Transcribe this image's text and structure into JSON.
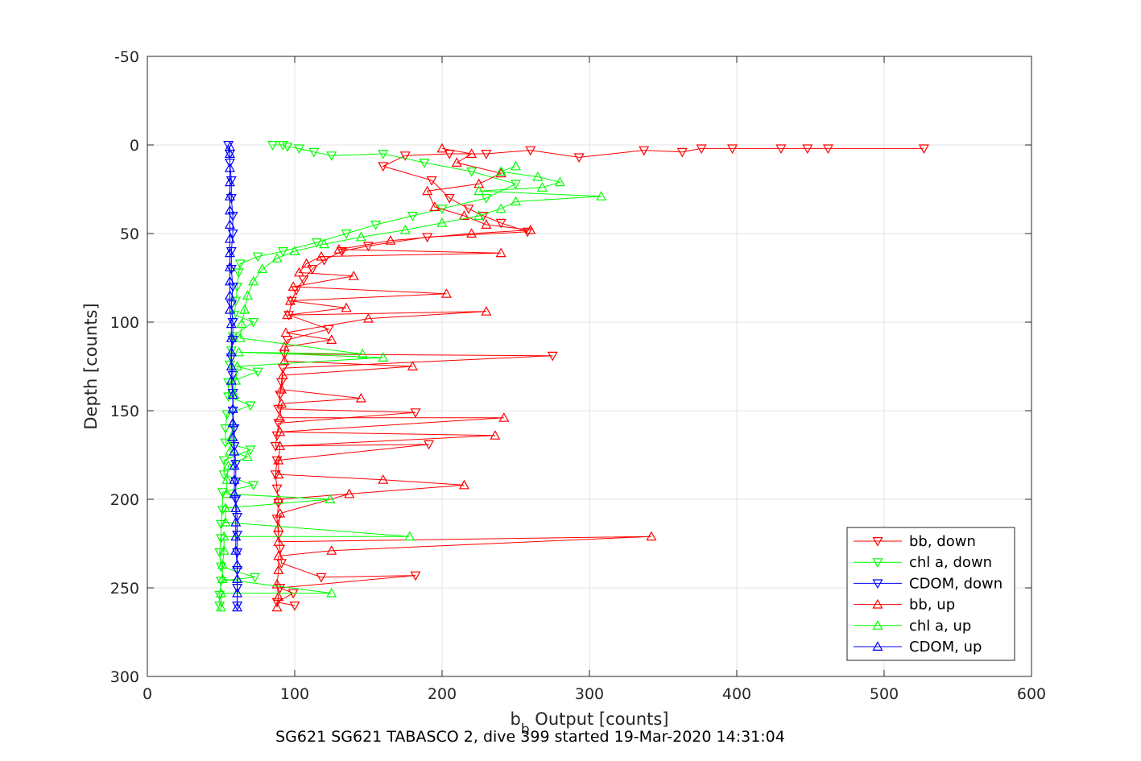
{
  "chart_data": {
    "type": "line",
    "xlabel_main": "b",
    "xlabel_sub": "b",
    "xlabel_rest": " Output [counts]",
    "ylabel": "Depth [counts]",
    "caption": "SG621 SG621 TABASCO 2, dive 399 started 19-Mar-2020 14:31:04",
    "xlim": [
      0,
      600
    ],
    "ylim": [
      -50,
      300
    ],
    "y_reversed": true,
    "grid": true,
    "xticks": [
      "0",
      "100",
      "200",
      "300",
      "400",
      "500",
      "600"
    ],
    "yticks": [
      "-50",
      "0",
      "50",
      "100",
      "150",
      "200",
      "250",
      "300"
    ],
    "legend_position": "bottom-right",
    "series": [
      {
        "name": "bb, down",
        "color": "#ff0000",
        "marker": "triangle-down",
        "points": [
          [
            527,
            2
          ],
          [
            462,
            2
          ],
          [
            448,
            2
          ],
          [
            430,
            2
          ],
          [
            397,
            2
          ],
          [
            376,
            2
          ],
          [
            363,
            4
          ],
          [
            337,
            3
          ],
          [
            293,
            7
          ],
          [
            260,
            3
          ],
          [
            230,
            5
          ],
          [
            205,
            5
          ],
          [
            175,
            6
          ],
          [
            160,
            12
          ],
          [
            193,
            20
          ],
          [
            205,
            30
          ],
          [
            218,
            36
          ],
          [
            228,
            40
          ],
          [
            240,
            44
          ],
          [
            258,
            49
          ],
          [
            190,
            52
          ],
          [
            150,
            57
          ],
          [
            132,
            60
          ],
          [
            120,
            65
          ],
          [
            112,
            70
          ],
          [
            106,
            76
          ],
          [
            101,
            82
          ],
          [
            98,
            88
          ],
          [
            96,
            96
          ],
          [
            123,
            104
          ],
          [
            95,
            110
          ],
          [
            93,
            118
          ],
          [
            275,
            119
          ],
          [
            92,
            126
          ],
          [
            91,
            134
          ],
          [
            90,
            141
          ],
          [
            89,
            149
          ],
          [
            182,
            151
          ],
          [
            89,
            157
          ],
          [
            88,
            164
          ],
          [
            87,
            170
          ],
          [
            191,
            169
          ],
          [
            88,
            178
          ],
          [
            87,
            186
          ],
          [
            88,
            194
          ],
          [
            89,
            202
          ],
          [
            88,
            211
          ],
          [
            89,
            220
          ],
          [
            90,
            228
          ],
          [
            91,
            236
          ],
          [
            118,
            244
          ],
          [
            182,
            243
          ],
          [
            90,
            250
          ],
          [
            99,
            253
          ],
          [
            88,
            258
          ],
          [
            100,
            260
          ]
        ]
      },
      {
        "name": "chl a, down",
        "color": "#00ff00",
        "marker": "triangle-down",
        "points": [
          [
            85,
            0
          ],
          [
            92,
            0
          ],
          [
            95,
            1
          ],
          [
            103,
            2
          ],
          [
            113,
            4
          ],
          [
            125,
            6
          ],
          [
            160,
            5
          ],
          [
            188,
            10
          ],
          [
            220,
            15
          ],
          [
            250,
            22
          ],
          [
            230,
            30
          ],
          [
            200,
            36
          ],
          [
            180,
            40
          ],
          [
            155,
            45
          ],
          [
            135,
            50
          ],
          [
            115,
            55
          ],
          [
            92,
            60
          ],
          [
            75,
            63
          ],
          [
            63,
            67
          ],
          [
            62,
            72
          ],
          [
            61,
            80
          ],
          [
            60,
            88
          ],
          [
            59,
            96
          ],
          [
            72,
            100
          ],
          [
            58,
            108
          ],
          [
            57,
            116
          ],
          [
            56,
            124
          ],
          [
            75,
            128
          ],
          [
            55,
            134
          ],
          [
            55,
            142
          ],
          [
            70,
            147
          ],
          [
            54,
            152
          ],
          [
            53,
            160
          ],
          [
            53,
            168
          ],
          [
            70,
            172
          ],
          [
            52,
            178
          ],
          [
            52,
            186
          ],
          [
            72,
            192
          ],
          [
            51,
            196
          ],
          [
            51,
            206
          ],
          [
            50,
            214
          ],
          [
            50,
            222
          ],
          [
            49,
            230
          ],
          [
            50,
            238
          ],
          [
            73,
            244
          ],
          [
            50,
            246
          ],
          [
            49,
            254
          ],
          [
            49,
            260
          ]
        ]
      },
      {
        "name": "CDOM, down",
        "color": "#0000ff",
        "marker": "triangle-down",
        "points": [
          [
            55,
            0
          ],
          [
            56,
            5
          ],
          [
            56,
            10
          ],
          [
            57,
            20
          ],
          [
            57,
            30
          ],
          [
            58,
            40
          ],
          [
            58,
            50
          ],
          [
            57,
            60
          ],
          [
            57,
            70
          ],
          [
            58,
            80
          ],
          [
            57,
            90
          ],
          [
            58,
            100
          ],
          [
            58,
            110
          ],
          [
            57,
            120
          ],
          [
            58,
            130
          ],
          [
            58,
            140
          ],
          [
            58,
            150
          ],
          [
            59,
            160
          ],
          [
            59,
            170
          ],
          [
            60,
            180
          ],
          [
            60,
            190
          ],
          [
            60,
            200
          ],
          [
            61,
            210
          ],
          [
            61,
            220
          ],
          [
            61,
            230
          ],
          [
            61,
            240
          ],
          [
            61,
            250
          ],
          [
            61,
            260
          ]
        ]
      },
      {
        "name": "bb, up",
        "color": "#ff0000",
        "marker": "triangle-up",
        "points": [
          [
            88,
            261
          ],
          [
            89,
            255
          ],
          [
            88,
            248
          ],
          [
            89,
            240
          ],
          [
            89,
            232
          ],
          [
            125,
            229
          ],
          [
            342,
            221
          ],
          [
            89,
            224
          ],
          [
            89,
            216
          ],
          [
            90,
            208
          ],
          [
            137,
            197
          ],
          [
            89,
            200
          ],
          [
            215,
            192
          ],
          [
            160,
            189
          ],
          [
            89,
            186
          ],
          [
            89,
            178
          ],
          [
            90,
            170
          ],
          [
            236,
            164
          ],
          [
            90,
            162
          ],
          [
            242,
            154
          ],
          [
            90,
            154
          ],
          [
            91,
            146
          ],
          [
            145,
            143
          ],
          [
            91,
            138
          ],
          [
            92,
            130
          ],
          [
            180,
            125
          ],
          [
            93,
            122
          ],
          [
            93,
            114
          ],
          [
            125,
            110
          ],
          [
            94,
            106
          ],
          [
            150,
            98
          ],
          [
            230,
            94
          ],
          [
            95,
            96
          ],
          [
            135,
            92
          ],
          [
            97,
            88
          ],
          [
            203,
            84
          ],
          [
            99,
            80
          ],
          [
            140,
            74
          ],
          [
            103,
            72
          ],
          [
            108,
            67
          ],
          [
            118,
            63
          ],
          [
            240,
            61
          ],
          [
            130,
            59
          ],
          [
            165,
            54
          ],
          [
            220,
            50
          ],
          [
            260,
            48
          ],
          [
            230,
            45
          ],
          [
            215,
            40
          ],
          [
            195,
            35
          ],
          [
            190,
            26
          ],
          [
            225,
            22
          ],
          [
            240,
            16
          ],
          [
            210,
            10
          ],
          [
            220,
            5
          ],
          [
            200,
            2
          ]
        ]
      },
      {
        "name": "chl a, up",
        "color": "#00ff00",
        "marker": "triangle-up",
        "points": [
          [
            50,
            261
          ],
          [
            50,
            253
          ],
          [
            125,
            253
          ],
          [
            51,
            245
          ],
          [
            51,
            237
          ],
          [
            52,
            229
          ],
          [
            52,
            221
          ],
          [
            178,
            221
          ],
          [
            53,
            213
          ],
          [
            53,
            205
          ],
          [
            124,
            200
          ],
          [
            54,
            197
          ],
          [
            54,
            189
          ],
          [
            55,
            181
          ],
          [
            68,
            176
          ],
          [
            56,
            173
          ],
          [
            57,
            165
          ],
          [
            58,
            157
          ],
          [
            58,
            149
          ],
          [
            59,
            141
          ],
          [
            60,
            133
          ],
          [
            61,
            125
          ],
          [
            160,
            120
          ],
          [
            62,
            117
          ],
          [
            146,
            118
          ],
          [
            63,
            109
          ],
          [
            64,
            101
          ],
          [
            66,
            93
          ],
          [
            68,
            85
          ],
          [
            72,
            77
          ],
          [
            78,
            70
          ],
          [
            88,
            64
          ],
          [
            100,
            60
          ],
          [
            120,
            56
          ],
          [
            145,
            52
          ],
          [
            175,
            48
          ],
          [
            200,
            44
          ],
          [
            225,
            40
          ],
          [
            240,
            36
          ],
          [
            250,
            32
          ],
          [
            308,
            29
          ],
          [
            225,
            26
          ],
          [
            268,
            24
          ],
          [
            280,
            21
          ],
          [
            265,
            18
          ],
          [
            240,
            15
          ],
          [
            250,
            12
          ]
        ]
      },
      {
        "name": "CDOM, up",
        "color": "#0000ff",
        "marker": "triangle-up",
        "points": [
          [
            61,
            261
          ],
          [
            61,
            253
          ],
          [
            61,
            245
          ],
          [
            61,
            237
          ],
          [
            60,
            229
          ],
          [
            60,
            221
          ],
          [
            60,
            213
          ],
          [
            60,
            205
          ],
          [
            59,
            197
          ],
          [
            59,
            189
          ],
          [
            59,
            181
          ],
          [
            59,
            173
          ],
          [
            58,
            165
          ],
          [
            58,
            157
          ],
          [
            58,
            149
          ],
          [
            58,
            141
          ],
          [
            57,
            133
          ],
          [
            57,
            125
          ],
          [
            57,
            117
          ],
          [
            57,
            109
          ],
          [
            57,
            101
          ],
          [
            56,
            93
          ],
          [
            56,
            85
          ],
          [
            56,
            77
          ],
          [
            56,
            69
          ],
          [
            56,
            61
          ],
          [
            56,
            53
          ],
          [
            56,
            45
          ],
          [
            56,
            37
          ],
          [
            56,
            29
          ],
          [
            56,
            21
          ],
          [
            56,
            13
          ],
          [
            56,
            5
          ],
          [
            56,
            1
          ]
        ]
      }
    ]
  }
}
